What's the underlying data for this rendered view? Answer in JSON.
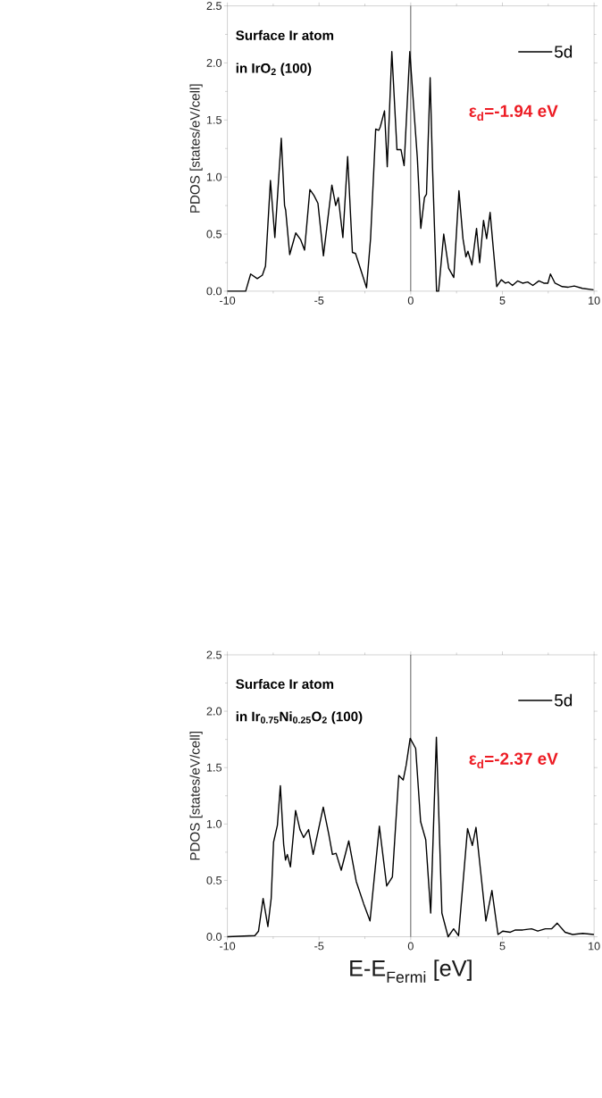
{
  "chart_data": [
    {
      "type": "line",
      "ylabel": "PDOS [states/eV/cell]",
      "annotations": [
        "Surface Ir atom",
        "in IrO$_{2}$ (100)",
        "ε$_{d}$=-1.94 eV"
      ],
      "legend": "top right",
      "xlim": [
        -10,
        10
      ],
      "xticks": [
        -10,
        -5,
        0,
        5,
        10
      ],
      "ylim": [
        0,
        2.5
      ],
      "yticks": [
        {
          "value": 0,
          "label": "0.0"
        },
        {
          "value": 0.5,
          "label": "0.5"
        },
        {
          "value": 1,
          "label": "1.0"
        },
        {
          "value": 1.5,
          "label": "1.5"
        },
        {
          "value": 2,
          "label": "2.0"
        },
        {
          "value": 2.5,
          "label": "2.5"
        }
      ],
      "ref_lines": [
        {
          "axis": "x",
          "value": 0,
          "color": "#000000"
        }
      ],
      "series": [
        {
          "name": "5d",
          "color": "#000000",
          "x": [
            -10,
            -9.0,
            -8.73,
            -8.37,
            -8.09,
            -7.92,
            -7.65,
            -7.41,
            -7.06,
            -6.88,
            -6.82,
            -6.6,
            -6.27,
            -6.0,
            -5.79,
            -5.5,
            -5.28,
            -5.06,
            -4.76,
            -4.3,
            -4.09,
            -3.95,
            -3.7,
            -3.44,
            -3.18,
            -3.01,
            -2.41,
            -2.19,
            -1.91,
            -1.74,
            -1.66,
            -1.43,
            -1.28,
            -1.03,
            -0.75,
            -0.53,
            -0.36,
            -0.05,
            0.2,
            0.36,
            0.55,
            0.75,
            0.86,
            1.06,
            1.19,
            1.41,
            1.52,
            1.8,
            2.07,
            2.35,
            2.63,
            2.85,
            3.01,
            3.12,
            3.34,
            3.59,
            3.76,
            3.97,
            4.14,
            4.33,
            4.5,
            4.69,
            4.94,
            5.17,
            5.33,
            5.55,
            5.83,
            6.1,
            6.38,
            6.66,
            6.99,
            7.26,
            7.48,
            7.62,
            7.87,
            8.26,
            8.59,
            8.92,
            9.36,
            9.97
          ],
          "values": [
            0,
            0,
            0.15,
            0.11,
            0.14,
            0.22,
            0.97,
            0.47,
            1.34,
            0.75,
            0.71,
            0.32,
            0.51,
            0.45,
            0.36,
            0.89,
            0.84,
            0.77,
            0.31,
            0.93,
            0.75,
            0.82,
            0.47,
            1.18,
            0.34,
            0.33,
            0.03,
            0.46,
            1.42,
            1.41,
            1.44,
            1.58,
            1.09,
            2.1,
            1.24,
            1.24,
            1.1,
            2.1,
            1.53,
            1.17,
            0.55,
            0.82,
            0.85,
            1.87,
            1.08,
            0.0,
            0.0,
            0.5,
            0.2,
            0.12,
            0.88,
            0.46,
            0.3,
            0.35,
            0.23,
            0.55,
            0.25,
            0.62,
            0.46,
            0.69,
            0.38,
            0.04,
            0.1,
            0.07,
            0.08,
            0.05,
            0.09,
            0.07,
            0.08,
            0.05,
            0.09,
            0.07,
            0.07,
            0.15,
            0.07,
            0.04,
            0.035,
            0.045,
            0.025,
            0.012
          ]
        }
      ]
    },
    {
      "type": "line",
      "xlabel": "E-E$_{Fermi}$ [eV]",
      "ylabel": "PDOS [states/eV/cell]",
      "annotations": [
        "Surface Ir atom",
        "in Ir$_{0.75}$Ni$_{0.25}$O$_{2}$ (100)",
        "ε$_{d}$=-2.37 eV"
      ],
      "legend": "top right",
      "xlim": [
        -10,
        10
      ],
      "xticks": [
        -10,
        -5,
        0,
        5,
        10
      ],
      "ylim": [
        0,
        2.5
      ],
      "yticks": [
        {
          "value": 0,
          "label": "0.0"
        },
        {
          "value": 0.5,
          "label": "0.5"
        },
        {
          "value": 1,
          "label": "1.0"
        },
        {
          "value": 1.5,
          "label": "1.5"
        },
        {
          "value": 2,
          "label": "2.0"
        },
        {
          "value": 2.5,
          "label": "2.5"
        }
      ],
      "ref_lines": [
        {
          "axis": "x",
          "value": 0,
          "color": "#000000"
        }
      ],
      "series": [
        {
          "name": "5d",
          "color": "#000000",
          "x": [
            -10,
            -8.5,
            -8.3,
            -8.05,
            -7.79,
            -7.61,
            -7.48,
            -7.27,
            -7.11,
            -6.93,
            -6.83,
            -6.73,
            -6.56,
            -6.28,
            -6.04,
            -5.84,
            -5.57,
            -5.32,
            -4.77,
            -4.47,
            -4.27,
            -4.07,
            -3.79,
            -3.38,
            -2.97,
            -2.56,
            -2.22,
            -1.71,
            -1.31,
            -1.0,
            -0.65,
            -0.41,
            -0.25,
            -0.03,
            0.27,
            0.54,
            0.82,
            1.09,
            1.4,
            1.7,
            2.04,
            2.34,
            2.61,
            3.1,
            3.36,
            3.56,
            3.8,
            4.1,
            4.43,
            4.76,
            5.03,
            5.43,
            5.71,
            6.11,
            6.59,
            6.93,
            7.34,
            7.68,
            7.99,
            8.42,
            8.83,
            9.38,
            9.99
          ],
          "values": [
            0,
            0.01,
            0.05,
            0.34,
            0.09,
            0.34,
            0.84,
            0.99,
            1.34,
            0.82,
            0.68,
            0.73,
            0.62,
            1.12,
            0.95,
            0.88,
            0.95,
            0.73,
            1.15,
            0.91,
            0.73,
            0.74,
            0.59,
            0.85,
            0.49,
            0.29,
            0.14,
            0.98,
            0.45,
            0.53,
            1.43,
            1.39,
            1.52,
            1.76,
            1.67,
            1.02,
            0.86,
            0.21,
            1.77,
            0.21,
            0.0,
            0.07,
            0.01,
            0.96,
            0.81,
            0.97,
            0.6,
            0.14,
            0.41,
            0.02,
            0.05,
            0.04,
            0.06,
            0.06,
            0.07,
            0.05,
            0.07,
            0.07,
            0.12,
            0.04,
            0.02,
            0.03,
            0.02
          ]
        }
      ]
    }
  ]
}
